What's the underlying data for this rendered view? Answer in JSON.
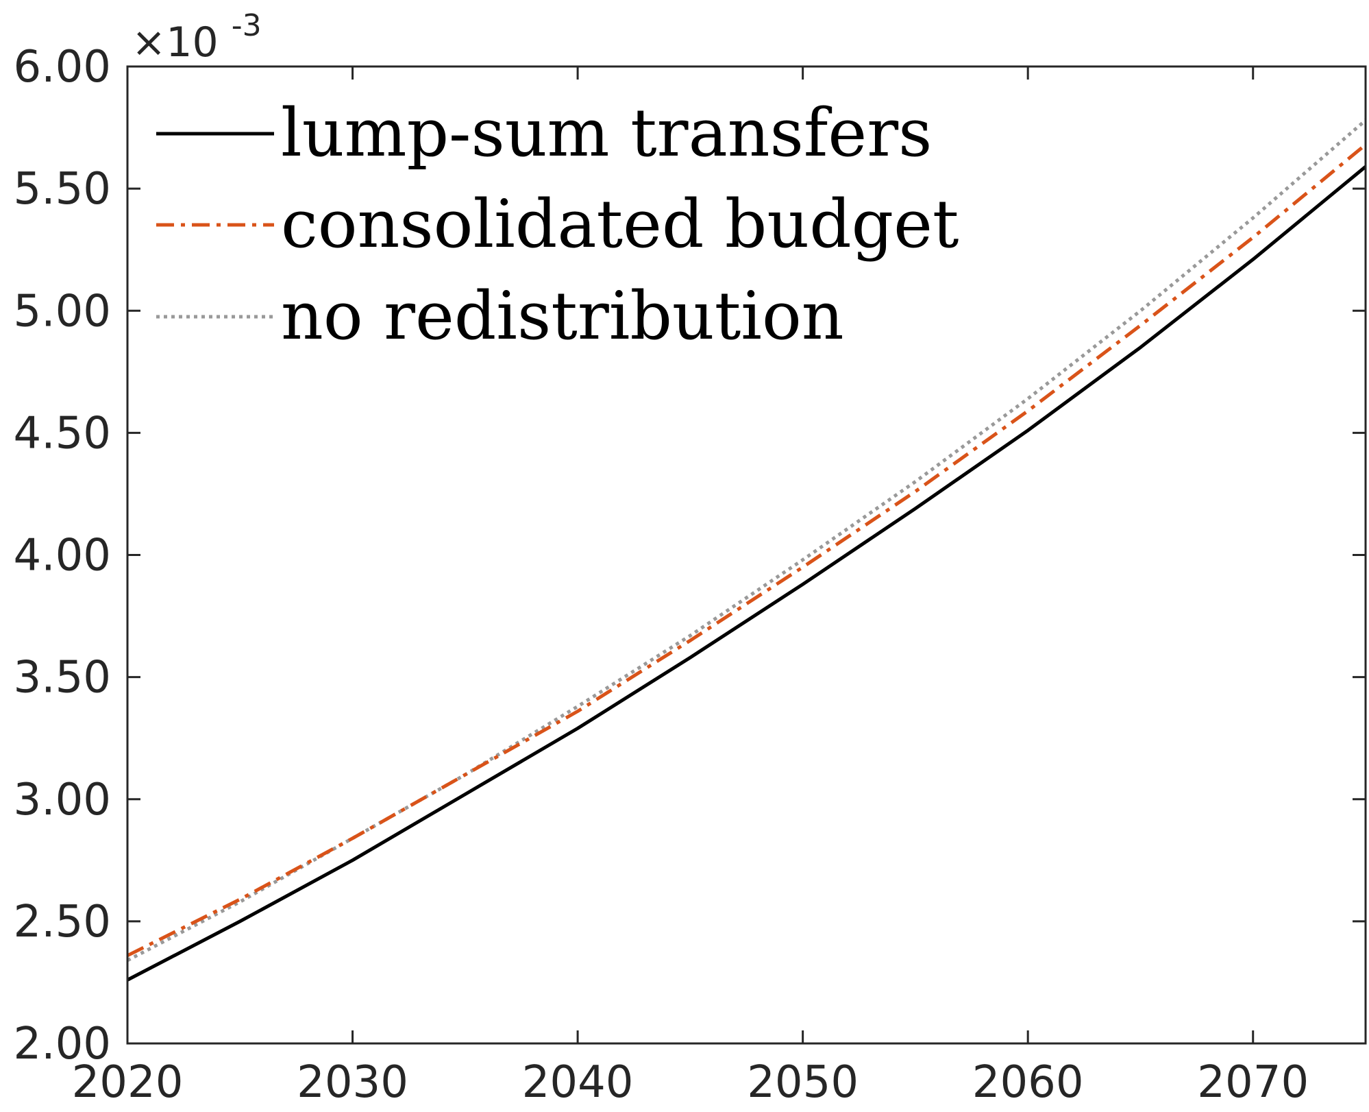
{
  "chart_data": {
    "type": "line",
    "title": "",
    "xlabel": "",
    "ylabel": "",
    "xlim": [
      2020,
      2075
    ],
    "ylim": [
      2.0,
      6.0
    ],
    "y_multiplier_text": "×10",
    "y_multiplier_exponent": "-3",
    "x_ticks": [
      2020,
      2030,
      2040,
      2050,
      2060,
      2070
    ],
    "x_tick_labels": [
      "2020",
      "2030",
      "2040",
      "2050",
      "2060",
      "2070"
    ],
    "y_ticks": [
      2.0,
      2.5,
      3.0,
      3.5,
      4.0,
      4.5,
      5.0,
      5.5,
      6.0
    ],
    "y_tick_labels": [
      "2.00",
      "2.50",
      "3.00",
      "3.50",
      "4.00",
      "4.50",
      "5.00",
      "5.50",
      "6.00"
    ],
    "grid": false,
    "legend_position": "top-left",
    "x": [
      2020,
      2025,
      2030,
      2035,
      2040,
      2045,
      2050,
      2055,
      2060,
      2065,
      2070,
      2075
    ],
    "series": [
      {
        "name": "lump-sum transfers",
        "color": "#000000",
        "line_style": "solid",
        "values": [
          2.26,
          2.5,
          2.75,
          3.02,
          3.29,
          3.58,
          3.88,
          4.19,
          4.51,
          4.85,
          5.21,
          5.59
        ]
      },
      {
        "name": "consolidated budget",
        "color": "#D95319",
        "line_style": "dash-dot",
        "values": [
          2.36,
          2.59,
          2.84,
          3.1,
          3.36,
          3.65,
          3.95,
          4.26,
          4.59,
          4.94,
          5.3,
          5.68
        ]
      },
      {
        "name": "no redistribution",
        "color": "#999999",
        "line_style": "dotted",
        "values": [
          2.34,
          2.58,
          2.84,
          3.1,
          3.38,
          3.67,
          3.98,
          4.3,
          4.64,
          5.0,
          5.38,
          5.78
        ]
      }
    ]
  }
}
